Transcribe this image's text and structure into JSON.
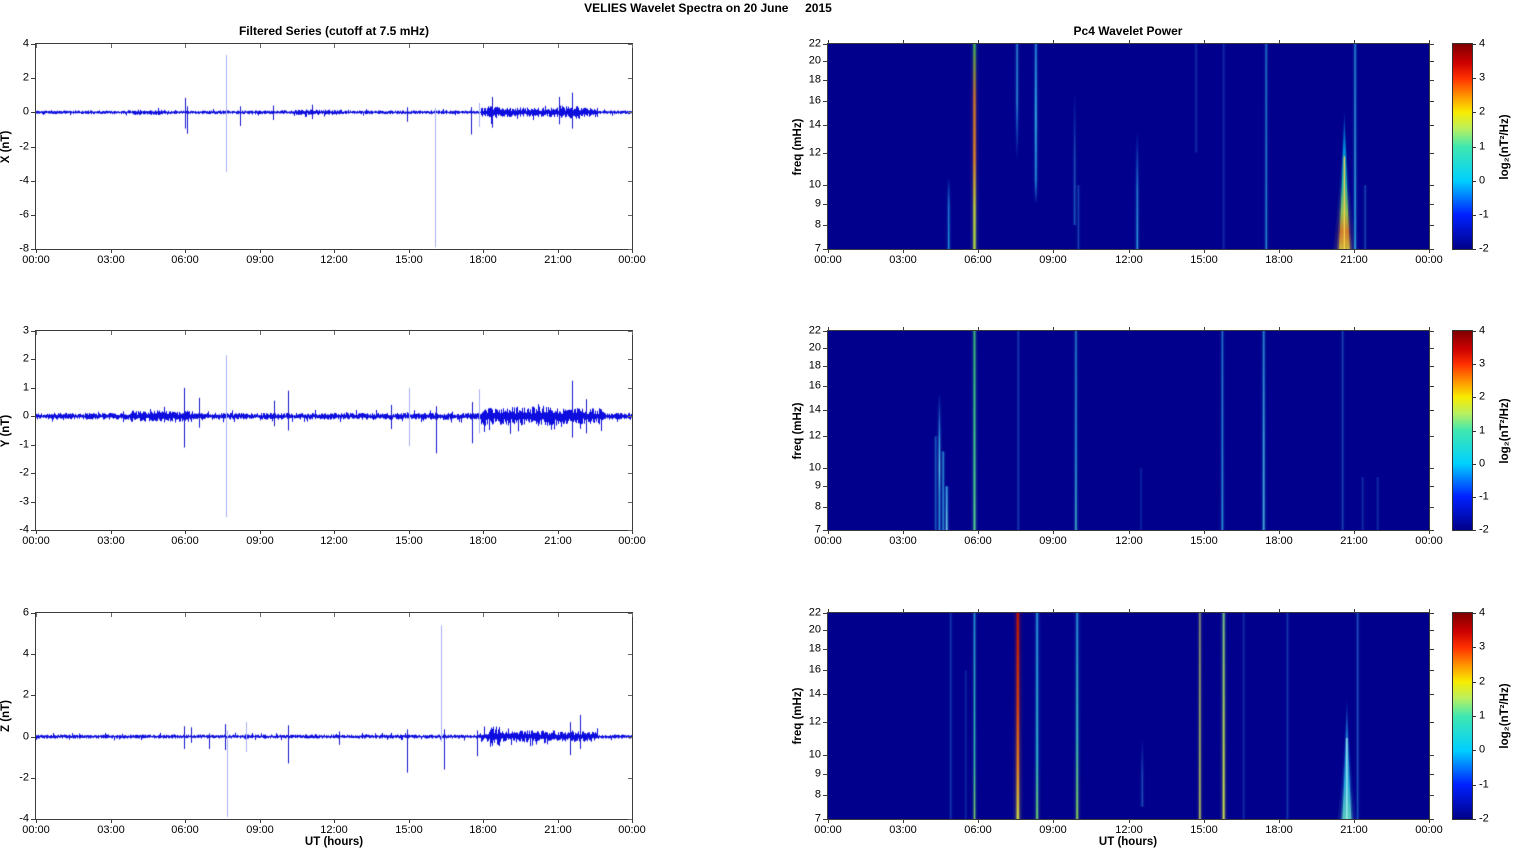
{
  "title": "VELIES Wavelet Spectra on 20 June     2015",
  "left_title": "Filtered Series (cutoff at 7.5 mHz)",
  "right_title": "Pc4 Wavelet Power",
  "time_axis": {
    "label": "UT (hours)",
    "ticks": [
      "00:00",
      "03:00",
      "06:00",
      "09:00",
      "12:00",
      "15:00",
      "18:00",
      "21:00",
      "00:00"
    ],
    "range_hours": [
      0,
      24
    ]
  },
  "colorbar": {
    "label": "log₂(nT²/Hz)",
    "ticks": [
      4,
      3,
      2,
      1,
      0,
      -1,
      -2
    ],
    "range": [
      -2,
      4
    ]
  },
  "trace_color": "#0000dd",
  "spike_light_color": "#a9b2f5",
  "chart_data": [
    {
      "id": "series-x",
      "type": "line",
      "ylabel": "X (nT)",
      "ylim": [
        -8,
        4
      ],
      "yticks": [
        4,
        2,
        0,
        -2,
        -4,
        -6,
        -8
      ],
      "seed": 11,
      "noise_base": 0.11,
      "activity": [
        {
          "start": 3.9,
          "end": 5.2,
          "amp": 0.16
        },
        {
          "start": 10.4,
          "end": 12.3,
          "amp": 0.16
        },
        {
          "start": 17.9,
          "end": 22.6,
          "amp": 0.28
        },
        {
          "start": 18.2,
          "end": 18.6,
          "amp": 0.38
        },
        {
          "start": 21.1,
          "end": 21.9,
          "amp": 0.4
        }
      ],
      "spikes": [
        {
          "t": 5.98,
          "hi": 0.85,
          "lo": -0.95,
          "tone": "dark"
        },
        {
          "t": 6.1,
          "hi": 0.35,
          "lo": -1.25,
          "tone": "dark"
        },
        {
          "t": 7.67,
          "hi": 3.35,
          "lo": -3.5,
          "tone": "light"
        },
        {
          "t": 8.2,
          "hi": 0.35,
          "lo": -0.8,
          "tone": "dark"
        },
        {
          "t": 9.55,
          "hi": 0.4,
          "lo": -0.45,
          "tone": "dark"
        },
        {
          "t": 11.1,
          "hi": 0.45,
          "lo": -0.4,
          "tone": "dark"
        },
        {
          "t": 14.95,
          "hi": 0.3,
          "lo": -0.55,
          "tone": "dark"
        },
        {
          "t": 16.07,
          "hi": 0.25,
          "lo": -7.9,
          "tone": "light"
        },
        {
          "t": 17.5,
          "hi": 0.3,
          "lo": -1.3,
          "tone": "dark"
        },
        {
          "t": 17.85,
          "hi": 0.55,
          "lo": -0.85,
          "tone": "light"
        },
        {
          "t": 18.35,
          "hi": 0.9,
          "lo": -0.9,
          "tone": "dark"
        },
        {
          "t": 21.05,
          "hi": 0.9,
          "lo": -0.7,
          "tone": "dark"
        },
        {
          "t": 21.6,
          "hi": 1.15,
          "lo": -0.95,
          "tone": "dark"
        }
      ]
    },
    {
      "id": "series-y",
      "type": "line",
      "ylabel": "Y (nT)",
      "ylim": [
        -4,
        3
      ],
      "yticks": [
        3,
        2,
        1,
        0,
        -1,
        -2,
        -3,
        -4
      ],
      "seed": 22,
      "noise_base": 0.12,
      "activity": [
        {
          "start": 3.8,
          "end": 6.3,
          "amp": 0.2
        },
        {
          "start": 17.9,
          "end": 22.8,
          "amp": 0.3
        },
        {
          "start": 18.9,
          "end": 21.0,
          "amp": 0.34
        }
      ],
      "spikes": [
        {
          "t": 5.95,
          "hi": 1.0,
          "lo": -1.1,
          "tone": "dark"
        },
        {
          "t": 6.55,
          "hi": 0.65,
          "lo": -0.4,
          "tone": "dark"
        },
        {
          "t": 7.67,
          "hi": 2.15,
          "lo": -3.55,
          "tone": "light"
        },
        {
          "t": 9.6,
          "hi": 0.55,
          "lo": -0.35,
          "tone": "dark"
        },
        {
          "t": 10.15,
          "hi": 0.9,
          "lo": -0.5,
          "tone": "dark"
        },
        {
          "t": 14.3,
          "hi": 0.4,
          "lo": -0.45,
          "tone": "dark"
        },
        {
          "t": 15.0,
          "hi": 1.0,
          "lo": -1.05,
          "tone": "light"
        },
        {
          "t": 16.1,
          "hi": 0.35,
          "lo": -1.3,
          "tone": "dark"
        },
        {
          "t": 17.55,
          "hi": 0.5,
          "lo": -0.95,
          "tone": "dark"
        },
        {
          "t": 17.85,
          "hi": 0.95,
          "lo": -0.6,
          "tone": "light"
        },
        {
          "t": 21.6,
          "hi": 1.25,
          "lo": -0.75,
          "tone": "dark"
        },
        {
          "t": 22.15,
          "hi": 0.6,
          "lo": -0.6,
          "tone": "dark"
        }
      ]
    },
    {
      "id": "series-z",
      "type": "line",
      "ylabel": "Z (nT)",
      "ylim": [
        -4,
        6
      ],
      "yticks": [
        6,
        4,
        2,
        0,
        -2,
        -4
      ],
      "seed": 33,
      "noise_base": 0.1,
      "activity": [
        {
          "start": 17.9,
          "end": 22.6,
          "amp": 0.26
        },
        {
          "start": 18.25,
          "end": 18.65,
          "amp": 0.5
        },
        {
          "start": 19.3,
          "end": 21.2,
          "amp": 0.3
        }
      ],
      "spikes": [
        {
          "t": 5.95,
          "hi": 0.5,
          "lo": -0.6,
          "tone": "dark"
        },
        {
          "t": 6.25,
          "hi": 0.45,
          "lo": -0.3,
          "tone": "dark"
        },
        {
          "t": 6.95,
          "hi": 0.15,
          "lo": -0.6,
          "tone": "dark"
        },
        {
          "t": 7.6,
          "hi": 0.6,
          "lo": -0.65,
          "tone": "dark"
        },
        {
          "t": 7.68,
          "hi": 0.3,
          "lo": -3.9,
          "tone": "light"
        },
        {
          "t": 8.45,
          "hi": 0.7,
          "lo": -0.75,
          "tone": "light"
        },
        {
          "t": 10.15,
          "hi": 0.55,
          "lo": -1.3,
          "tone": "dark"
        },
        {
          "t": 12.2,
          "hi": 0.25,
          "lo": -0.4,
          "tone": "dark"
        },
        {
          "t": 14.95,
          "hi": 0.35,
          "lo": -1.75,
          "tone": "dark"
        },
        {
          "t": 16.3,
          "hi": 5.4,
          "lo": -0.25,
          "tone": "light"
        },
        {
          "t": 16.42,
          "hi": 0.35,
          "lo": -1.6,
          "tone": "dark"
        },
        {
          "t": 17.75,
          "hi": 0.3,
          "lo": -0.95,
          "tone": "dark"
        },
        {
          "t": 21.5,
          "hi": 0.7,
          "lo": -0.9,
          "tone": "dark"
        },
        {
          "t": 21.9,
          "hi": 1.05,
          "lo": -0.6,
          "tone": "dark"
        }
      ]
    },
    {
      "id": "wavelet-x",
      "type": "heatmap",
      "ylabel": "freq (mHz)",
      "yscale": "log",
      "ylim": [
        7,
        22
      ],
      "yticks": [
        22,
        20,
        18,
        16,
        14,
        12,
        10,
        9,
        8,
        7
      ],
      "background": "#00008c",
      "streaks": [
        {
          "t": 4.82,
          "f_top": 10.5,
          "f_bot": 7,
          "intensity": 0.7,
          "stops": [
            [
              0,
              "rgba(30,120,220,0)"
            ],
            [
              0.4,
              "#2090e0"
            ],
            [
              1,
              "#28b4e8"
            ]
          ]
        },
        {
          "t": 5.85,
          "f_top": 22,
          "f_bot": 7,
          "w": 2.2,
          "intensity": 1,
          "stops": [
            [
              0,
              "#40b858"
            ],
            [
              0.25,
              "#d07828"
            ],
            [
              0.55,
              "#e88820"
            ],
            [
              0.8,
              "#c8d838"
            ],
            [
              1,
              "#b0e040"
            ]
          ]
        },
        {
          "t": 7.55,
          "f_top": 22,
          "f_bot": 11.5,
          "intensity": 0.7,
          "stops": [
            [
              0,
              "#30a0e0"
            ],
            [
              0.5,
              "#30b0e8"
            ],
            [
              1,
              "rgba(40,130,230,0)"
            ]
          ]
        },
        {
          "t": 8.3,
          "f_top": 22,
          "f_bot": 9,
          "intensity": 0.9,
          "stops": [
            [
              0,
              "#2890e0"
            ],
            [
              0.45,
              "#38c8f0"
            ],
            [
              0.85,
              "#2898e0"
            ],
            [
              1,
              "rgba(40,120,220,0)"
            ]
          ]
        },
        {
          "t": 9.85,
          "f_top": 17,
          "f_bot": 8,
          "intensity": 0.5,
          "stops": [
            [
              0,
              "rgba(40,100,210,0)"
            ],
            [
              0.5,
              "#2878d0"
            ],
            [
              1,
              "#2888d8"
            ]
          ]
        },
        {
          "t": 10.0,
          "f_top": 10,
          "f_bot": 7,
          "intensity": 0.4,
          "color": "#2878d0"
        },
        {
          "t": 12.35,
          "f_top": 13.5,
          "f_bot": 7,
          "intensity": 0.75,
          "stops": [
            [
              0,
              "rgba(30,110,220,0)"
            ],
            [
              0.5,
              "#2898e0"
            ],
            [
              1,
              "#30b8e8"
            ]
          ]
        },
        {
          "t": 14.7,
          "f_top": 22,
          "f_bot": 12,
          "intensity": 0.3,
          "color": "#2868d0"
        },
        {
          "t": 15.8,
          "f_top": 22,
          "f_bot": 7,
          "intensity": 0.3,
          "color": "#2868d0"
        },
        {
          "t": 17.5,
          "f_top": 22,
          "f_bot": 7,
          "intensity": 0.65,
          "stops": [
            [
              0,
              "#2890d8"
            ],
            [
              1,
              "#30b0e0"
            ]
          ]
        },
        {
          "type": "flame",
          "t": 20.62,
          "f_apex": 15.5,
          "base_w": 11,
          "core": "#ffd24a",
          "stops": [
            [
              0,
              "rgba(0,150,230,0)"
            ],
            [
              0.3,
              "#00a8e8"
            ],
            [
              0.55,
              "#30d0a8"
            ],
            [
              0.75,
              "#a8dc48"
            ],
            [
              0.88,
              "#f09020"
            ],
            [
              1,
              "#e8cf30"
            ]
          ]
        },
        {
          "t": 21.05,
          "f_top": 22,
          "f_bot": 7,
          "intensity": 0.8,
          "stops": [
            [
              0,
              "#2894dc"
            ],
            [
              1,
              "#38c4ec"
            ]
          ]
        },
        {
          "t": 21.45,
          "f_top": 10,
          "f_bot": 7,
          "intensity": 0.4,
          "color": "#2878d0"
        }
      ]
    },
    {
      "id": "wavelet-y",
      "type": "heatmap",
      "ylabel": "freq (mHz)",
      "yscale": "log",
      "ylim": [
        7,
        22
      ],
      "yticks": [
        22,
        20,
        18,
        16,
        14,
        12,
        10,
        9,
        8,
        7
      ],
      "background": "#00008c",
      "streaks": [
        {
          "t": 4.3,
          "f_top": 12,
          "f_bot": 7,
          "intensity": 0.45,
          "color": "#2890dc"
        },
        {
          "t": 4.45,
          "f_top": 15.5,
          "f_bot": 7,
          "intensity": 0.8,
          "stops": [
            [
              0,
              "rgba(40,120,220,0)"
            ],
            [
              0.35,
              "#38b0e8"
            ],
            [
              0.55,
              "#60d8f0"
            ],
            [
              0.75,
              "#38a8e0"
            ],
            [
              1,
              "#30a0e0"
            ]
          ]
        },
        {
          "t": 4.6,
          "f_top": 11,
          "f_bot": 7,
          "intensity": 0.7,
          "color": "#30a8e4"
        },
        {
          "t": 4.74,
          "f_top": 9,
          "f_bot": 7,
          "intensity": 0.9,
          "stops": [
            [
              0,
              "#38b0e8"
            ],
            [
              1,
              "#70e0f0"
            ]
          ]
        },
        {
          "t": 5.85,
          "f_top": 22,
          "f_bot": 7,
          "w": 1.8,
          "intensity": 1,
          "stops": [
            [
              0,
              "#38b878"
            ],
            [
              0.5,
              "#40cc88"
            ],
            [
              1,
              "#58d890"
            ]
          ]
        },
        {
          "t": 7.6,
          "f_top": 22,
          "f_bot": 7,
          "intensity": 0.4,
          "color": "#2870cc"
        },
        {
          "t": 9.9,
          "f_top": 22,
          "f_bot": 7,
          "intensity": 0.8,
          "stops": [
            [
              0,
              "#2888d0"
            ],
            [
              0.6,
              "#30a8e0"
            ],
            [
              1,
              "#48c8d0"
            ]
          ]
        },
        {
          "t": 12.5,
          "f_top": 10,
          "f_bot": 7,
          "intensity": 0.25,
          "color": "#2868c8"
        },
        {
          "t": 15.75,
          "f_top": 22,
          "f_bot": 7,
          "intensity": 0.7,
          "stops": [
            [
              0,
              "#2888d4"
            ],
            [
              1,
              "#38b4e4"
            ]
          ]
        },
        {
          "t": 17.4,
          "f_top": 22,
          "f_bot": 7,
          "intensity": 0.85,
          "stops": [
            [
              0,
              "#2890d8"
            ],
            [
              0.6,
              "#40bce8"
            ],
            [
              1,
              "#48c8e8"
            ]
          ]
        },
        {
          "t": 20.55,
          "f_top": 22,
          "f_bot": 7,
          "intensity": 0.45,
          "color": "#2874cc"
        },
        {
          "t": 21.35,
          "f_top": 9.5,
          "f_bot": 7,
          "intensity": 0.3,
          "color": "#2868c8"
        },
        {
          "t": 21.95,
          "f_top": 9.5,
          "f_bot": 7,
          "intensity": 0.3,
          "color": "#2868c8"
        }
      ]
    },
    {
      "id": "wavelet-z",
      "type": "heatmap",
      "ylabel": "freq (mHz)",
      "yscale": "log",
      "ylim": [
        7,
        22
      ],
      "yticks": [
        22,
        20,
        18,
        16,
        14,
        12,
        10,
        9,
        8,
        7
      ],
      "background": "#00008c",
      "streaks": [
        {
          "t": 4.9,
          "f_top": 22,
          "f_bot": 7,
          "intensity": 0.35,
          "color": "#2870cc"
        },
        {
          "t": 5.5,
          "f_top": 16,
          "f_bot": 7,
          "intensity": 0.25,
          "color": "#2868c8"
        },
        {
          "t": 5.85,
          "f_top": 22,
          "f_bot": 7,
          "intensity": 0.85,
          "stops": [
            [
              0,
              "#28a0d8"
            ],
            [
              0.7,
              "#38c8b0"
            ],
            [
              1,
              "#80e060"
            ]
          ]
        },
        {
          "t": 7.58,
          "f_top": 22,
          "f_bot": 7,
          "w": 2.4,
          "intensity": 1,
          "stops": [
            [
              0,
              "#c01400"
            ],
            [
              0.45,
              "#e04408"
            ],
            [
              0.75,
              "#f08818"
            ],
            [
              1,
              "#d8e040"
            ]
          ]
        },
        {
          "t": 8.35,
          "f_top": 22,
          "f_bot": 7,
          "w": 1.8,
          "intensity": 0.9,
          "stops": [
            [
              0,
              "#2898e0"
            ],
            [
              0.7,
              "#30c8d0"
            ],
            [
              1,
              "#78e068"
            ]
          ]
        },
        {
          "t": 9.95,
          "f_top": 22,
          "f_bot": 7,
          "w": 1.8,
          "intensity": 0.9,
          "stops": [
            [
              0,
              "#2890d8"
            ],
            [
              0.6,
              "#38c8c0"
            ],
            [
              1,
              "#90e050"
            ]
          ]
        },
        {
          "t": 12.55,
          "f_top": 11,
          "f_bot": 7.5,
          "intensity": 0.45,
          "stops": [
            [
              0,
              "rgba(40,100,215,0)"
            ],
            [
              0.5,
              "#2878d0"
            ],
            [
              1,
              "#3090dc"
            ]
          ]
        },
        {
          "t": 14.85,
          "f_top": 22,
          "f_bot": 7,
          "intensity": 0.8,
          "stops": [
            [
              0,
              "#9caa70"
            ],
            [
              0.55,
              "#b8d058"
            ],
            [
              1,
              "#d8e850"
            ]
          ]
        },
        {
          "t": 15.8,
          "f_top": 22,
          "f_bot": 7,
          "w": 1.8,
          "intensity": 0.95,
          "stops": [
            [
              0,
              "#78c888"
            ],
            [
              0.6,
              "#b8e050"
            ],
            [
              1,
              "#d8ec48"
            ]
          ]
        },
        {
          "t": 16.6,
          "f_top": 22,
          "f_bot": 7,
          "intensity": 0.3,
          "color": "#2868cc"
        },
        {
          "t": 18.35,
          "f_top": 22,
          "f_bot": 7,
          "intensity": 0.35,
          "color": "#2870cc"
        },
        {
          "type": "flame",
          "t": 20.72,
          "f_apex": 14,
          "base_w": 9,
          "core": "#a8f0f0",
          "stops": [
            [
              0,
              "rgba(30,140,225,0)"
            ],
            [
              0.4,
              "#2090e0"
            ],
            [
              0.7,
              "#28c0e8"
            ],
            [
              1,
              "#68e8c8"
            ]
          ]
        },
        {
          "t": 21.15,
          "f_top": 22,
          "f_bot": 7,
          "intensity": 0.5,
          "color": "#2880d4"
        }
      ]
    }
  ]
}
